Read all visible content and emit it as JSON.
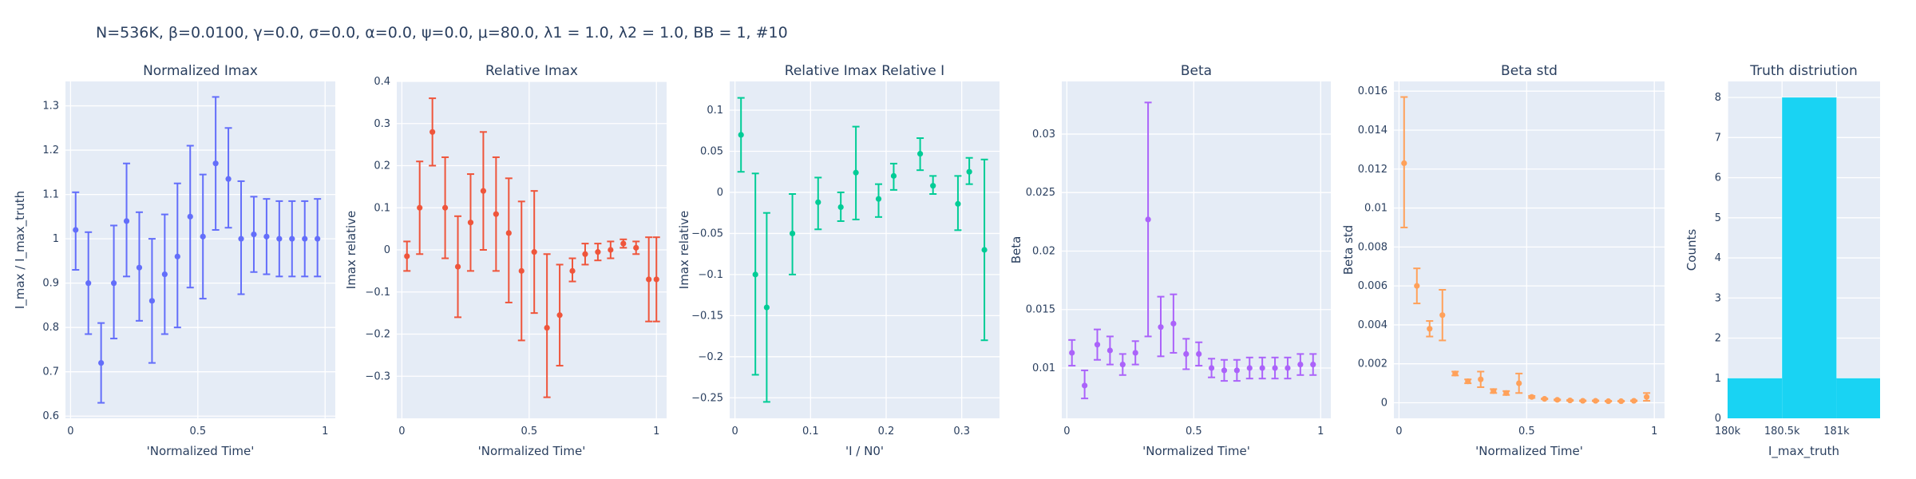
{
  "figure_title": "N=536K, β=0.0100, γ=0.0, σ=0.0,  α=0.0, ψ=0.0, μ=80.0, λ1 = 1.0, λ2 = 1.0, BB = 1, #10",
  "chart_data": [
    {
      "type": "scatter",
      "title": "Normalized Imax",
      "xlabel": "'Normalized Time'",
      "ylabel": "I_max / I_max_truth",
      "color": "#636efa",
      "xlim": [
        -0.02,
        1.04
      ],
      "ylim": [
        0.595,
        1.355
      ],
      "xticks": [
        0,
        0.5,
        1
      ],
      "xtick_labels": [
        "0",
        "0.5",
        "1"
      ],
      "yticks": [
        0.6,
        0.7,
        0.8,
        0.9,
        1.0,
        1.1,
        1.2,
        1.3
      ],
      "ytick_labels": [
        "0.6",
        "0.7",
        "0.8",
        "0.9",
        "1",
        "1.1",
        "1.2",
        "1.3"
      ],
      "series": [
        {
          "x": [
            0.02,
            0.07,
            0.12,
            0.17,
            0.22,
            0.27,
            0.32,
            0.37,
            0.42,
            0.47,
            0.52,
            0.57,
            0.62,
            0.67,
            0.72,
            0.77,
            0.82,
            0.87,
            0.92,
            0.97
          ],
          "y": [
            1.02,
            0.9,
            0.72,
            0.9,
            1.04,
            0.935,
            0.86,
            0.92,
            0.96,
            1.05,
            1.005,
            1.17,
            1.135,
            1.0,
            1.01,
            1.005,
            1.0,
            1.0,
            1.0,
            1.0
          ],
          "err_high": [
            1.105,
            1.015,
            0.81,
            1.03,
            1.17,
            1.06,
            1.0,
            1.055,
            1.125,
            1.21,
            1.145,
            1.32,
            1.25,
            1.13,
            1.095,
            1.09,
            1.085,
            1.085,
            1.085,
            1.09
          ],
          "err_low": [
            0.93,
            0.785,
            0.63,
            0.775,
            0.915,
            0.815,
            0.72,
            0.785,
            0.8,
            0.89,
            0.865,
            1.02,
            1.025,
            0.875,
            0.925,
            0.92,
            0.915,
            0.915,
            0.915,
            0.915
          ]
        }
      ]
    },
    {
      "type": "scatter",
      "title": "Relative Imax",
      "xlabel": "'Normalized Time'",
      "ylabel": "Imax relative",
      "color": "#ef553b",
      "xlim": [
        -0.02,
        1.04
      ],
      "ylim": [
        -0.4,
        0.4
      ],
      "xticks": [
        0,
        0.5,
        1
      ],
      "xtick_labels": [
        "0",
        "0.5",
        "1"
      ],
      "yticks": [
        -0.3,
        -0.2,
        -0.1,
        0,
        0.1,
        0.2,
        0.3,
        0.4
      ],
      "ytick_labels": [
        "−0.3",
        "−0.2",
        "−0.1",
        "0",
        "0.1",
        "0.2",
        "0.3",
        "0.4"
      ],
      "series": [
        {
          "x": [
            0.02,
            0.07,
            0.12,
            0.17,
            0.22,
            0.27,
            0.32,
            0.37,
            0.42,
            0.47,
            0.52,
            0.57,
            0.62,
            0.67,
            0.72,
            0.77,
            0.82,
            0.87,
            0.92,
            0.97,
            1.0
          ],
          "y": [
            -0.015,
            0.1,
            0.28,
            0.1,
            -0.04,
            0.065,
            0.14,
            0.085,
            0.04,
            -0.05,
            -0.005,
            -0.185,
            -0.155,
            -0.05,
            -0.01,
            -0.005,
            0.0,
            0.015,
            0.005,
            -0.07,
            -0.07
          ],
          "err_high": [
            0.02,
            0.21,
            0.36,
            0.22,
            0.08,
            0.18,
            0.28,
            0.22,
            0.17,
            0.115,
            0.14,
            -0.01,
            -0.035,
            -0.02,
            0.015,
            0.015,
            0.02,
            0.025,
            0.02,
            0.03,
            0.03
          ],
          "err_low": [
            -0.05,
            -0.01,
            0.2,
            -0.02,
            -0.16,
            -0.05,
            0.0,
            -0.05,
            -0.125,
            -0.215,
            -0.15,
            -0.35,
            -0.275,
            -0.075,
            -0.035,
            -0.025,
            -0.02,
            0.005,
            -0.01,
            -0.17,
            -0.17
          ]
        }
      ]
    },
    {
      "type": "scatter",
      "title": "Relative Imax Relative I",
      "xlabel": "'I / N0'",
      "ylabel": "Imax relative",
      "color": "#00cc96",
      "xlim": [
        -0.007,
        0.35
      ],
      "ylim": [
        -0.275,
        0.135
      ],
      "xticks": [
        0,
        0.1,
        0.2,
        0.3
      ],
      "xtick_labels": [
        "0",
        "0.1",
        "0.2",
        "0.3"
      ],
      "yticks": [
        -0.25,
        -0.2,
        -0.15,
        -0.1,
        -0.05,
        0,
        0.05,
        0.1
      ],
      "ytick_labels": [
        "−0.25",
        "−0.2",
        "−0.15",
        "−0.1",
        "−0.05",
        "0",
        "0.05",
        "0.1"
      ],
      "series": [
        {
          "x": [
            0.008,
            0.027,
            0.042,
            0.076,
            0.11,
            0.14,
            0.16,
            0.19,
            0.21,
            0.245,
            0.262,
            0.295,
            0.31,
            0.33
          ],
          "y": [
            0.07,
            -0.1,
            -0.14,
            -0.05,
            -0.012,
            -0.018,
            0.024,
            -0.008,
            0.02,
            0.047,
            0.008,
            -0.014,
            0.025,
            -0.07
          ],
          "err_high": [
            0.115,
            0.023,
            -0.025,
            -0.002,
            0.018,
            0.0,
            0.08,
            0.01,
            0.035,
            0.066,
            0.02,
            0.02,
            0.042,
            0.04
          ],
          "err_low": [
            0.025,
            -0.222,
            -0.255,
            -0.1,
            -0.045,
            -0.035,
            -0.033,
            -0.03,
            0.003,
            0.027,
            -0.002,
            -0.046,
            0.01,
            -0.18
          ]
        }
      ]
    },
    {
      "type": "scatter",
      "title": "Beta",
      "xlabel": "'Normalized Time'",
      "ylabel": "Beta",
      "color": "#ab63fa",
      "xlim": [
        -0.02,
        1.04
      ],
      "ylim": [
        0.0057,
        0.0345
      ],
      "xticks": [
        0,
        0.5,
        1
      ],
      "xtick_labels": [
        "0",
        "0.5",
        "1"
      ],
      "yticks": [
        0.01,
        0.015,
        0.02,
        0.025,
        0.03
      ],
      "ytick_labels": [
        "0.01",
        "0.015",
        "0.02",
        "0.025",
        "0.03"
      ],
      "series": [
        {
          "x": [
            0.02,
            0.07,
            0.12,
            0.17,
            0.22,
            0.27,
            0.32,
            0.37,
            0.42,
            0.47,
            0.52,
            0.57,
            0.62,
            0.67,
            0.72,
            0.77,
            0.82,
            0.87,
            0.92,
            0.97
          ],
          "y": [
            0.0113,
            0.0085,
            0.012,
            0.0115,
            0.0103,
            0.0113,
            0.0227,
            0.0135,
            0.0138,
            0.0112,
            0.0112,
            0.01,
            0.0098,
            0.0098,
            0.01,
            0.01,
            0.01,
            0.01,
            0.0103,
            0.0103
          ],
          "err_high": [
            0.0124,
            0.0098,
            0.0133,
            0.0127,
            0.0112,
            0.0123,
            0.0327,
            0.0161,
            0.0163,
            0.0125,
            0.0122,
            0.0108,
            0.0107,
            0.0107,
            0.0109,
            0.0109,
            0.0109,
            0.0109,
            0.0112,
            0.0112
          ],
          "err_low": [
            0.0102,
            0.0074,
            0.0107,
            0.0103,
            0.0094,
            0.0103,
            0.0127,
            0.011,
            0.0113,
            0.0099,
            0.0102,
            0.0092,
            0.0089,
            0.0089,
            0.0091,
            0.0091,
            0.0091,
            0.0091,
            0.0094,
            0.0094
          ]
        }
      ]
    },
    {
      "type": "scatter",
      "title": "Beta std",
      "xlabel": "'Normalized Time'",
      "ylabel": "Beta std",
      "color": "#ffa15a",
      "xlim": [
        -0.02,
        1.04
      ],
      "ylim": [
        -0.0008,
        0.0165
      ],
      "xticks": [
        0,
        0.5,
        1
      ],
      "xtick_labels": [
        "0",
        "0.5",
        "1"
      ],
      "yticks": [
        0,
        0.002,
        0.004,
        0.006,
        0.008,
        0.01,
        0.012,
        0.014,
        0.016
      ],
      "ytick_labels": [
        "0",
        "0.002",
        "0.004",
        "0.006",
        "0.008",
        "0.01",
        "0.012",
        "0.014",
        "0.016"
      ],
      "series": [
        {
          "x": [
            0.02,
            0.07,
            0.12,
            0.17,
            0.22,
            0.27,
            0.32,
            0.37,
            0.42,
            0.47,
            0.52,
            0.57,
            0.62,
            0.67,
            0.72,
            0.77,
            0.82,
            0.87,
            0.92,
            0.97
          ],
          "y": [
            0.0123,
            0.006,
            0.0038,
            0.0045,
            0.0015,
            0.0011,
            0.0012,
            0.0006,
            0.0005,
            0.001,
            0.0003,
            0.0002,
            0.00015,
            0.00012,
            0.0001,
            0.0001,
            8e-05,
            8e-05,
            0.0001,
            0.0003
          ],
          "err_high": [
            0.0157,
            0.0069,
            0.0042,
            0.0058,
            0.0016,
            0.0012,
            0.0016,
            0.0007,
            0.0006,
            0.0015,
            0.00035,
            0.00022,
            0.00017,
            0.00014,
            0.00012,
            0.00012,
            0.0001,
            0.0001,
            0.00012,
            0.0005
          ],
          "err_low": [
            0.009,
            0.0051,
            0.0034,
            0.0032,
            0.0014,
            0.001,
            0.0008,
            0.0005,
            0.0004,
            0.0005,
            0.00025,
            0.00018,
            0.00013,
            0.0001,
            8e-05,
            8e-05,
            6e-05,
            6e-05,
            8e-05,
            0.0001
          ]
        }
      ]
    },
    {
      "type": "bar",
      "title": "Truth distriution",
      "xlabel": "I_max_truth",
      "ylabel": "Counts",
      "color": "#19d3f3",
      "xlim": [
        180000,
        181400
      ],
      "ylim": [
        0,
        8.4
      ],
      "xticks": [
        180000,
        180500,
        181000
      ],
      "xtick_labels": [
        "180k",
        "180.5k",
        "181k"
      ],
      "yticks": [
        0,
        1,
        2,
        3,
        4,
        5,
        6,
        7,
        8
      ],
      "ytick_labels": [
        "0",
        "1",
        "2",
        "3",
        "4",
        "5",
        "6",
        "7",
        "8"
      ],
      "bins": [
        [
          180000,
          180500
        ],
        [
          180500,
          181000
        ],
        [
          181000,
          181400
        ]
      ],
      "values": [
        1,
        8,
        1
      ]
    }
  ]
}
